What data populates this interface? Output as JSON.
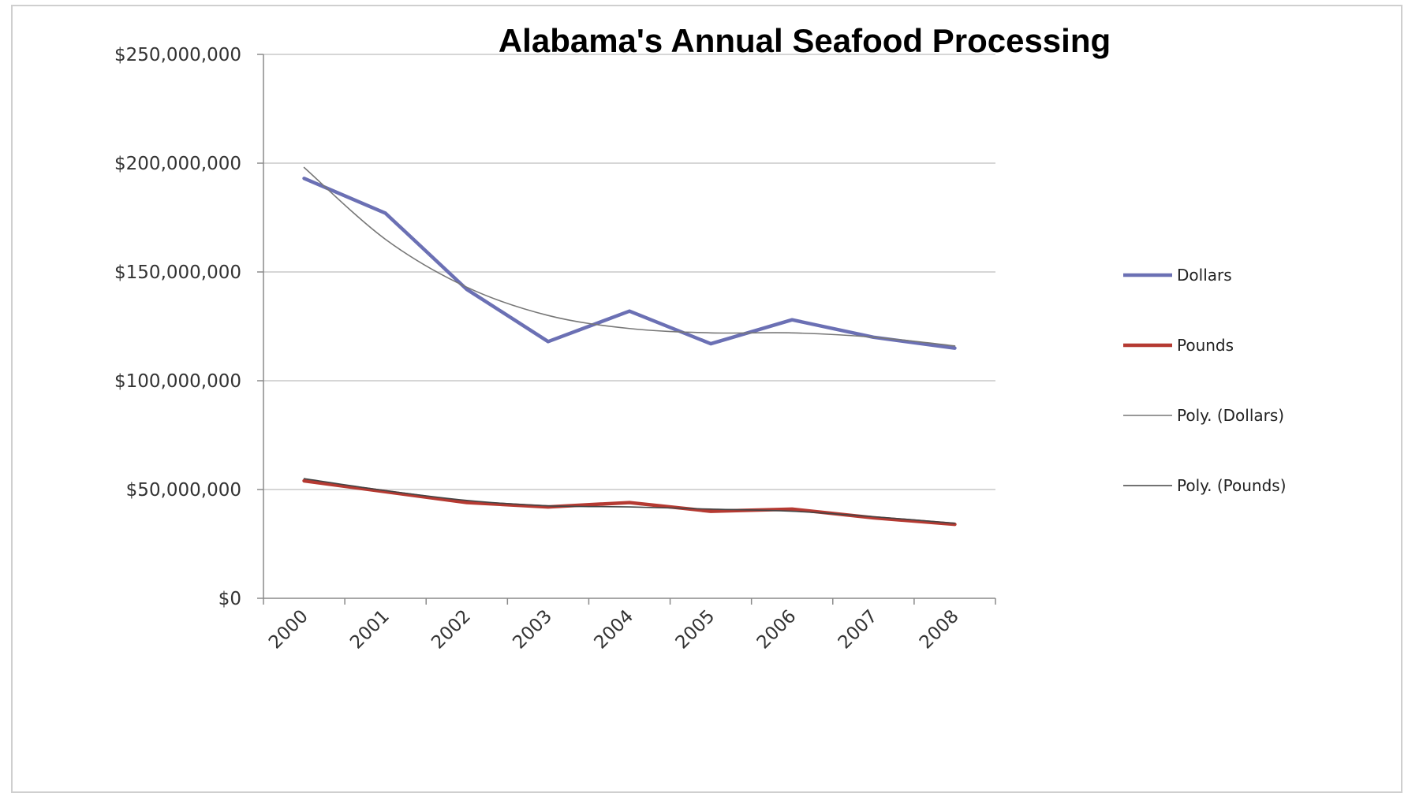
{
  "chart_data": {
    "type": "line",
    "title": "Alabama's Annual Seafood Processing",
    "xlabel": "",
    "ylabel": "",
    "categories": [
      "2000",
      "2001",
      "2002",
      "2003",
      "2004",
      "2005",
      "2006",
      "2007",
      "2008"
    ],
    "yticks": [
      "$0",
      "$50,000,000",
      "$100,000,000",
      "$150,000,000",
      "$200,000,000",
      "$250,000,000"
    ],
    "ylim": [
      0,
      250000000
    ],
    "grid": true,
    "legend_position": "right",
    "series": [
      {
        "name": "Dollars",
        "color": "#6b70b4",
        "style": "data",
        "values": [
          193000000,
          177000000,
          142000000,
          118000000,
          132000000,
          117000000,
          128000000,
          120000000,
          115000000
        ]
      },
      {
        "name": "Pounds",
        "color": "#b53a32",
        "style": "data",
        "values": [
          54000000,
          49000000,
          44000000,
          42000000,
          44000000,
          40000000,
          41000000,
          37000000,
          34000000
        ]
      },
      {
        "name": "Poly. (Dollars)",
        "color": "#777777",
        "style": "trend",
        "values": [
          198000000,
          165000000,
          143000000,
          130000000,
          124000000,
          122000000,
          122000000,
          120000000,
          116000000
        ]
      },
      {
        "name": "Poly. (Pounds)",
        "color": "#444444",
        "style": "trend",
        "values": [
          55000000,
          49500000,
          45000000,
          42500000,
          42000000,
          41000000,
          40000000,
          37500000,
          34500000
        ]
      }
    ]
  }
}
